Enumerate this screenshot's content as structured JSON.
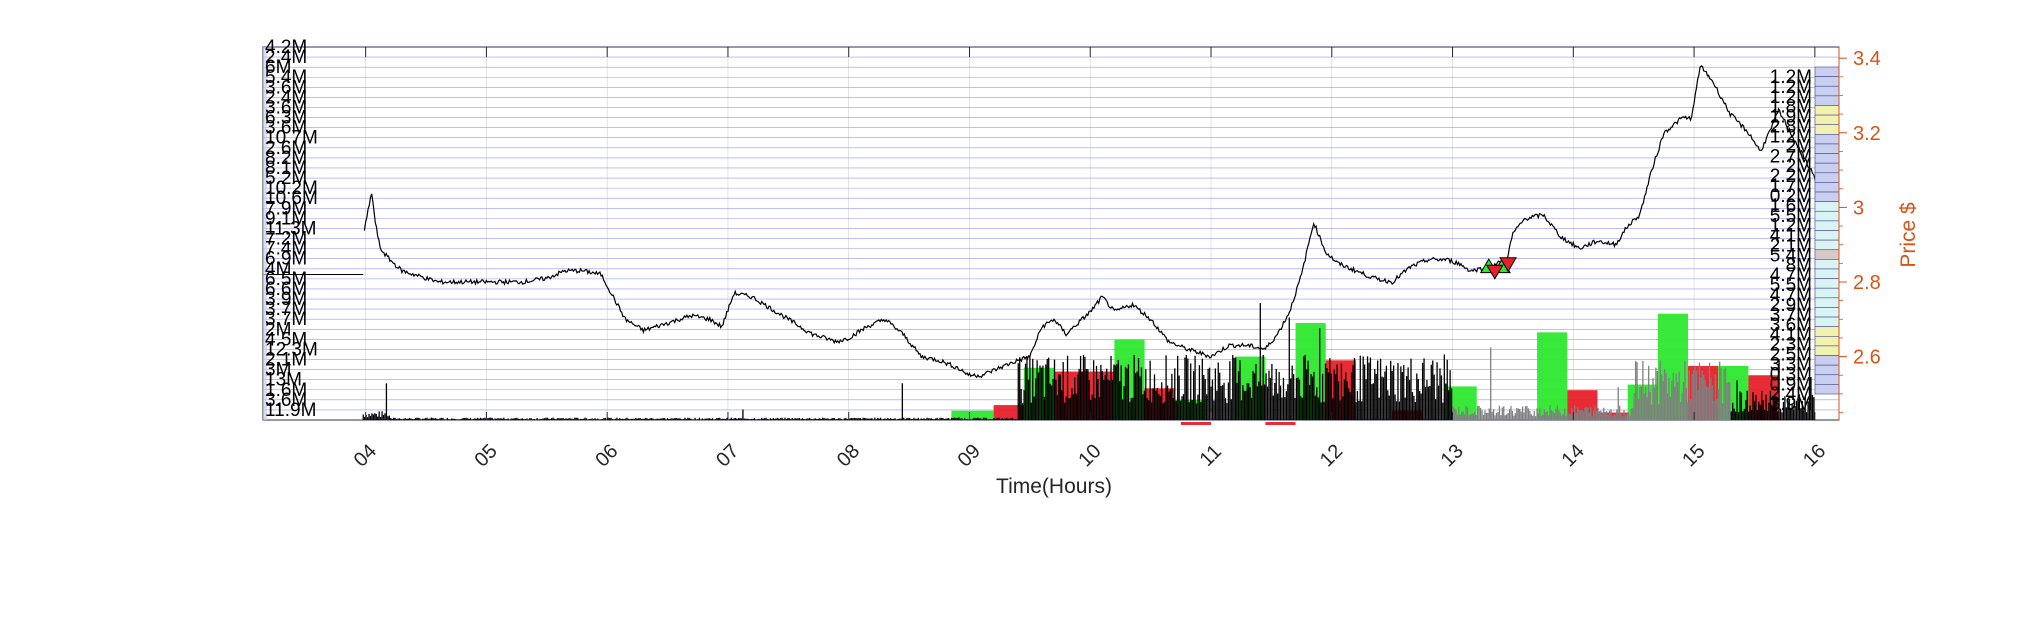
{
  "chart_data": {
    "type": "line",
    "xlabel": "Time(Hours)",
    "ylabel_right": "Price $",
    "x_tick_labels": [
      "04",
      "05",
      "06",
      "07",
      "08",
      "09",
      "10",
      "11",
      "12",
      "13",
      "14",
      "15",
      "16"
    ],
    "x_range_hours": [
      3.15,
      16.2
    ],
    "price_ticks": [
      2.6,
      2.8,
      3,
      3.2,
      3.4
    ],
    "price_tick_labels": [
      "2.6",
      "2.8",
      "3",
      "3.2",
      "3.4"
    ],
    "price_range": [
      2.43,
      3.43
    ],
    "price_series": {
      "name": "",
      "color": "#000000",
      "x": [
        3.99,
        4.02,
        4.05,
        4.08,
        4.12,
        4.2,
        4.3,
        4.4,
        4.5,
        4.6,
        4.8,
        5.0,
        5.3,
        5.5,
        5.65,
        5.8,
        5.95,
        6.05,
        6.15,
        6.3,
        6.5,
        6.7,
        6.85,
        6.95,
        7.05,
        7.2,
        7.35,
        7.5,
        7.7,
        7.9,
        8.0,
        8.15,
        8.3,
        8.45,
        8.6,
        8.75,
        8.9,
        9.0,
        9.1,
        9.25,
        9.4,
        9.5,
        9.6,
        9.7,
        9.8,
        9.9,
        10.0,
        10.1,
        10.2,
        10.35,
        10.5,
        10.65,
        10.8,
        10.9,
        11.0,
        11.15,
        11.3,
        11.45,
        11.55,
        11.65,
        11.75,
        11.85,
        11.95,
        12.05,
        12.2,
        12.35,
        12.5,
        12.65,
        12.8,
        12.95,
        13.05,
        13.15,
        13.3,
        13.45,
        13.5,
        13.6,
        13.75,
        13.9,
        14.05,
        14.2,
        14.35,
        14.45,
        14.55,
        14.65,
        14.75,
        14.9,
        14.98,
        15.05,
        15.15,
        15.3,
        15.45,
        15.55,
        15.65,
        15.7,
        15.8,
        15.9,
        16.0,
        16.05
      ],
      "y": [
        2.94,
        2.99,
        3.04,
        2.96,
        2.89,
        2.86,
        2.83,
        2.82,
        2.81,
        2.8,
        2.8,
        2.8,
        2.8,
        2.81,
        2.83,
        2.83,
        2.82,
        2.76,
        2.7,
        2.67,
        2.69,
        2.71,
        2.7,
        2.68,
        2.77,
        2.76,
        2.73,
        2.7,
        2.66,
        2.64,
        2.65,
        2.68,
        2.7,
        2.66,
        2.6,
        2.59,
        2.57,
        2.55,
        2.55,
        2.57,
        2.59,
        2.6,
        2.68,
        2.7,
        2.66,
        2.69,
        2.72,
        2.76,
        2.72,
        2.74,
        2.7,
        2.64,
        2.62,
        2.61,
        2.6,
        2.63,
        2.63,
        2.62,
        2.66,
        2.72,
        2.82,
        2.96,
        2.88,
        2.85,
        2.83,
        2.81,
        2.8,
        2.84,
        2.86,
        2.86,
        2.85,
        2.83,
        2.84,
        2.86,
        2.93,
        2.97,
        2.98,
        2.92,
        2.89,
        2.91,
        2.9,
        2.95,
        2.98,
        3.1,
        3.2,
        3.24,
        3.24,
        3.38,
        3.34,
        3.25,
        3.2,
        3.15,
        3.22,
        3.26,
        3.2,
        3.14,
        3.08,
        3.02
      ]
    },
    "trade_markers": [
      {
        "type": "buy",
        "x": 13.3,
        "price": 2.84
      },
      {
        "type": "buy",
        "x": 13.41,
        "price": 2.84
      },
      {
        "type": "sell",
        "x": 13.35,
        "price": 2.83
      },
      {
        "type": "sell",
        "x": 13.46,
        "price": 2.85
      }
    ],
    "left_volume_labels": [
      "4.2M",
      "2.4M",
      "6M",
      "5.4M",
      "3.6M",
      "2.4M",
      "3.6M",
      "6.3M",
      "3.6M",
      "10.7M",
      "2.6M",
      "8.2M",
      "8.1M",
      "5.2M",
      "10.2M",
      "10.6M",
      "7.9M",
      "9.1M",
      "11.3M",
      "7.2M",
      "7.4M",
      "6.9M",
      "4M",
      "6.5M",
      "6.6M",
      "3.9M",
      "3.7M",
      "3.7M",
      "2M",
      "4.5M",
      "12.3M",
      "2.1M",
      "3M",
      "13M",
      "1.6M",
      "3.6M",
      "11.9M"
    ],
    "right_volume_labels": [
      "1.2M",
      "1.2M",
      "1.2M",
      "1.8M",
      "1.9M",
      "2.8M",
      "1.2M",
      "2M",
      "2.7M",
      "2M",
      "2.2M",
      "1.7M",
      "0.2M",
      "1.6M",
      "5.5M",
      "1.2M",
      "4.1M",
      "2.1M",
      "5.4M",
      "8M",
      "4.7M",
      "5.5M",
      "4.7M",
      "2.9M",
      "3.7M",
      "3.6M",
      "4.1M",
      "2.3M",
      "2.5M",
      "3.3M",
      "0.3M",
      "0.9M",
      "2.4M",
      "3.9M"
    ],
    "volume_blocks": [
      {
        "x0": 8.85,
        "x1": 9.2,
        "level": 0.05,
        "color": "green"
      },
      {
        "x0": 9.2,
        "x1": 9.45,
        "level": 0.08,
        "color": "red"
      },
      {
        "x0": 9.45,
        "x1": 9.7,
        "level": 0.28,
        "color": "green"
      },
      {
        "x0": 9.7,
        "x1": 10.2,
        "level": 0.26,
        "color": "red"
      },
      {
        "x0": 10.2,
        "x1": 10.45,
        "level": 0.43,
        "color": "green"
      },
      {
        "x0": 10.45,
        "x1": 10.7,
        "level": 0.17,
        "color": "red"
      },
      {
        "x0": 10.7,
        "x1": 10.95,
        "level": 0.11,
        "color": "green"
      },
      {
        "x0": 10.75,
        "x1": 11.0,
        "level": -0.01,
        "color": "red"
      },
      {
        "x0": 11.2,
        "x1": 11.45,
        "level": 0.34,
        "color": "green"
      },
      {
        "x0": 11.45,
        "x1": 11.7,
        "level": -0.01,
        "color": "red"
      },
      {
        "x0": 11.7,
        "x1": 11.95,
        "level": 0.52,
        "color": "green"
      },
      {
        "x0": 11.95,
        "x1": 12.2,
        "level": 0.32,
        "color": "red"
      },
      {
        "x0": 12.5,
        "x1": 12.75,
        "level": 0.05,
        "color": "red"
      },
      {
        "x0": 12.95,
        "x1": 13.2,
        "level": 0.18,
        "color": "green"
      },
      {
        "x0": 13.7,
        "x1": 13.95,
        "level": 0.47,
        "color": "green"
      },
      {
        "x0": 13.95,
        "x1": 14.2,
        "level": 0.16,
        "color": "red"
      },
      {
        "x0": 14.2,
        "x1": 14.45,
        "level": 0.04,
        "color": "red"
      },
      {
        "x0": 14.45,
        "x1": 14.7,
        "level": 0.19,
        "color": "green"
      },
      {
        "x0": 14.7,
        "x1": 14.95,
        "level": 0.57,
        "color": "green"
      },
      {
        "x0": 14.95,
        "x1": 15.2,
        "level": 0.29,
        "color": "red"
      },
      {
        "x0": 15.2,
        "x1": 15.45,
        "level": 0.29,
        "color": "green"
      },
      {
        "x0": 15.45,
        "x1": 15.7,
        "level": 0.24,
        "color": "red"
      }
    ],
    "grid": true,
    "colors": {
      "axis_right": "#d95319",
      "grid_lines": "#4040ff",
      "price_line": "#000000",
      "buy_marker": "#2ee82e",
      "sell_marker": "#e8202a",
      "volume_black": "#000000",
      "volume_gray": "#7f7f7f",
      "profile_blue": "#c8cff0",
      "profile_yellow": "#f2f2b0",
      "profile_cyan": "#d8f4f4"
    }
  }
}
